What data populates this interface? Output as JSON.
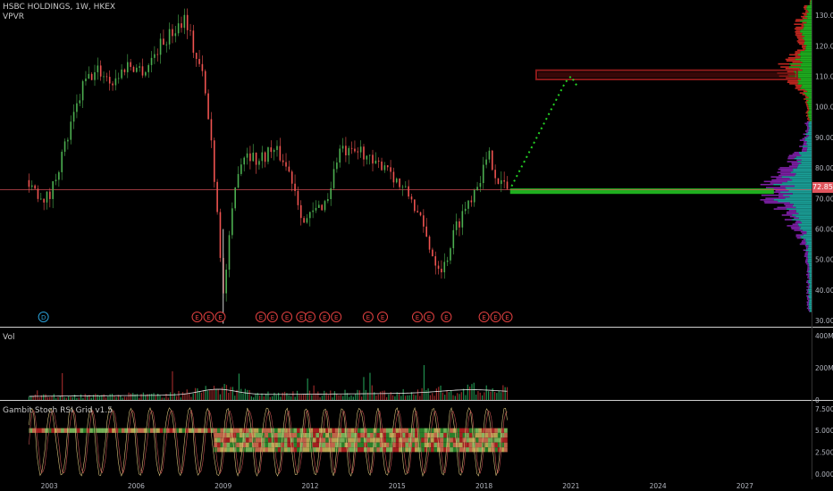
{
  "header": {
    "symbol_line": "HSBC HOLDINGS, 1W, HKEX",
    "indicator": "VPVR"
  },
  "volume_pane": {
    "label": "Vol"
  },
  "stoch_pane": {
    "label": "Gambit Stoch RSI Grid v1.5"
  },
  "price_tag": "72.85",
  "earnings_marker": "E",
  "dividend_marker": "D",
  "colors": {
    "background": "#000000",
    "up": "#4caf50",
    "down": "#ef5350",
    "price_line": "#e0555d",
    "vp_up": "#1a9e96",
    "vp_down": "#7b1fa2",
    "zone_red": "#8b1a1a",
    "zone_green": "#1fae1f",
    "projection": "#24d024"
  },
  "chart_data": [
    {
      "type": "candlestick",
      "title": "HSBC HOLDINGS, 1W, HKEX",
      "x_ticks": [
        "2003",
        "2006",
        "2009",
        "2012",
        "2015",
        "2018",
        "2021",
        "2024",
        "2027"
      ],
      "y_ticks": [
        "130.00",
        "120.00",
        "110.00",
        "100.00",
        "90.00",
        "80.00",
        "70.00",
        "60.00",
        "50.00",
        "40.00",
        "30.00"
      ],
      "ylim": [
        28,
        135
      ],
      "xlim": [
        2001.3,
        2029.3
      ],
      "last_price": 72.85,
      "path_points": [
        {
          "x": 2002.3,
          "y": 76
        },
        {
          "x": 2002.6,
          "y": 72
        },
        {
          "x": 2003.0,
          "y": 70
        },
        {
          "x": 2003.3,
          "y": 80
        },
        {
          "x": 2003.8,
          "y": 95
        },
        {
          "x": 2004.2,
          "y": 108
        },
        {
          "x": 2004.7,
          "y": 112
        },
        {
          "x": 2005.2,
          "y": 108
        },
        {
          "x": 2005.7,
          "y": 114
        },
        {
          "x": 2006.3,
          "y": 112
        },
        {
          "x": 2006.8,
          "y": 120
        },
        {
          "x": 2007.3,
          "y": 125
        },
        {
          "x": 2007.7,
          "y": 130
        },
        {
          "x": 2008.0,
          "y": 118
        },
        {
          "x": 2008.3,
          "y": 110
        },
        {
          "x": 2008.6,
          "y": 88
        },
        {
          "x": 2008.85,
          "y": 60
        },
        {
          "x": 2009.0,
          "y": 38
        },
        {
          "x": 2009.2,
          "y": 55
        },
        {
          "x": 2009.5,
          "y": 80
        },
        {
          "x": 2009.8,
          "y": 86
        },
        {
          "x": 2010.2,
          "y": 82
        },
        {
          "x": 2010.6,
          "y": 86
        },
        {
          "x": 2011.0,
          "y": 84
        },
        {
          "x": 2011.4,
          "y": 76
        },
        {
          "x": 2011.8,
          "y": 62
        },
        {
          "x": 2012.2,
          "y": 66
        },
        {
          "x": 2012.6,
          "y": 70
        },
        {
          "x": 2013.0,
          "y": 86
        },
        {
          "x": 2013.4,
          "y": 84
        },
        {
          "x": 2013.8,
          "y": 86
        },
        {
          "x": 2014.2,
          "y": 80
        },
        {
          "x": 2014.6,
          "y": 82
        },
        {
          "x": 2015.1,
          "y": 74
        },
        {
          "x": 2015.5,
          "y": 70
        },
        {
          "x": 2015.9,
          "y": 60
        },
        {
          "x": 2016.3,
          "y": 50
        },
        {
          "x": 2016.6,
          "y": 47
        },
        {
          "x": 2017.0,
          "y": 60
        },
        {
          "x": 2017.5,
          "y": 70
        },
        {
          "x": 2017.9,
          "y": 78
        },
        {
          "x": 2018.2,
          "y": 84
        },
        {
          "x": 2018.5,
          "y": 76
        },
        {
          "x": 2018.8,
          "y": 72.85
        }
      ],
      "resistance_zone": {
        "x": [
          2019.8,
          2028.8
        ],
        "y": [
          109,
          112
        ]
      },
      "support_zone": {
        "x": [
          2018.9,
          2028.0
        ],
        "y": [
          71.5,
          73.3
        ]
      },
      "projection": [
        {
          "x": 2018.95,
          "y": 74
        },
        {
          "x": 2020.8,
          "y": 108
        },
        {
          "x": 2021.0,
          "y": 110
        },
        {
          "x": 2021.2,
          "y": 107
        }
      ],
      "dividend_markers": [
        2002.8
      ],
      "earnings_markers": [
        2008.1,
        2008.5,
        2008.9,
        2010.3,
        2010.7,
        2011.2,
        2011.7,
        2012.0,
        2012.5,
        2012.9,
        2014.0,
        2014.5,
        2015.7,
        2016.1,
        2016.7,
        2018.0,
        2018.4,
        2018.8
      ]
    },
    {
      "type": "bar",
      "title": "Vol",
      "y_ticks": [
        "400M",
        "200M",
        "0"
      ],
      "ylim": [
        0,
        450
      ]
    },
    {
      "type": "line",
      "title": "Gambit Stoch RSI Grid v1.5",
      "y_ticks": [
        "7.5000",
        "5.0000",
        "2.5000",
        "0.0000"
      ],
      "ylim": [
        -0.6,
        8.4
      ]
    }
  ]
}
